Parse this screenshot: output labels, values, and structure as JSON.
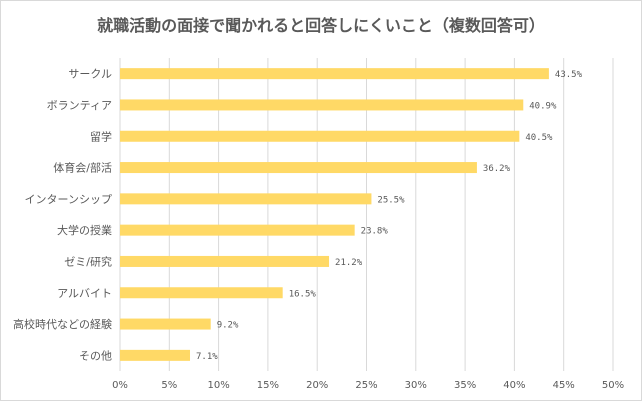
{
  "chart_data": {
    "type": "bar",
    "orientation": "horizontal",
    "title": "就職活動の面接で聞かれると回答しにくいこと（複数回答可）",
    "categories": [
      "サークル",
      "ボランティア",
      "留学",
      "体育会/部活",
      "インターンシップ",
      "大学の授業",
      "ゼミ/研究",
      "アルバイト",
      "高校時代などの経験",
      "その他"
    ],
    "values": [
      43.5,
      40.9,
      40.5,
      36.2,
      25.5,
      23.8,
      21.2,
      16.5,
      9.2,
      7.1
    ],
    "data_labels": [
      "43.5%",
      "40.9%",
      "40.5%",
      "36.2%",
      "25.5%",
      "23.8%",
      "21.2%",
      "16.5%",
      "9.2%",
      "7.1%"
    ],
    "xlim": [
      0,
      50
    ],
    "x_ticks": [
      0,
      5,
      10,
      15,
      20,
      25,
      30,
      35,
      40,
      45,
      50
    ],
    "x_tick_labels": [
      "0%",
      "5%",
      "10%",
      "15%",
      "20%",
      "25%",
      "30%",
      "35%",
      "40%",
      "45%",
      "50%"
    ],
    "grid": "vertical",
    "legend": "none",
    "bar_color": "#FFD966",
    "grid_color": "#d9d9d9",
    "text_color": "#595959"
  }
}
